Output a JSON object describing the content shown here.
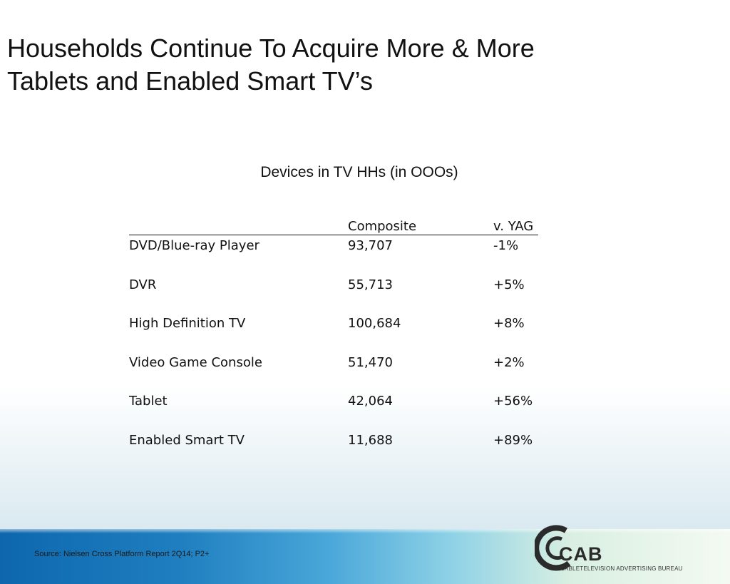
{
  "title": {
    "line1": "Households Continue To Acquire More & More",
    "line2": "Tablets and Enabled Smart TV’s"
  },
  "table": {
    "title": "Devices in  TV HHs (in OOOs)",
    "headers": {
      "device": "",
      "composite": "Composite",
      "yag": "v. YAG"
    },
    "rows": [
      {
        "device": "DVD/Blue-ray Player",
        "composite": "93,707",
        "yag": "-1%"
      },
      {
        "device": "DVR",
        "composite": "55,713",
        "yag": "+5%"
      },
      {
        "device": "High Definition TV",
        "composite": "100,684",
        "yag": "+8%"
      },
      {
        "device": "Video Game Console",
        "composite": "51,470",
        "yag": "+2%"
      },
      {
        "device": "Tablet",
        "composite": "42,064",
        "yag": "+56%"
      },
      {
        "device": "Enabled Smart TV",
        "composite": "11,688",
        "yag": "+89%"
      }
    ]
  },
  "footer": {
    "source": "Source: Nielsen Cross Platform Report 2Q14; P2+",
    "logo_text": "CAB",
    "logo_subtitle": "CABLETELEVISION ADVERTISING BUREAU"
  },
  "colors": {
    "footer_blue": "#0e67ad",
    "footer_light": "#d9efe2",
    "text": "#111111"
  }
}
